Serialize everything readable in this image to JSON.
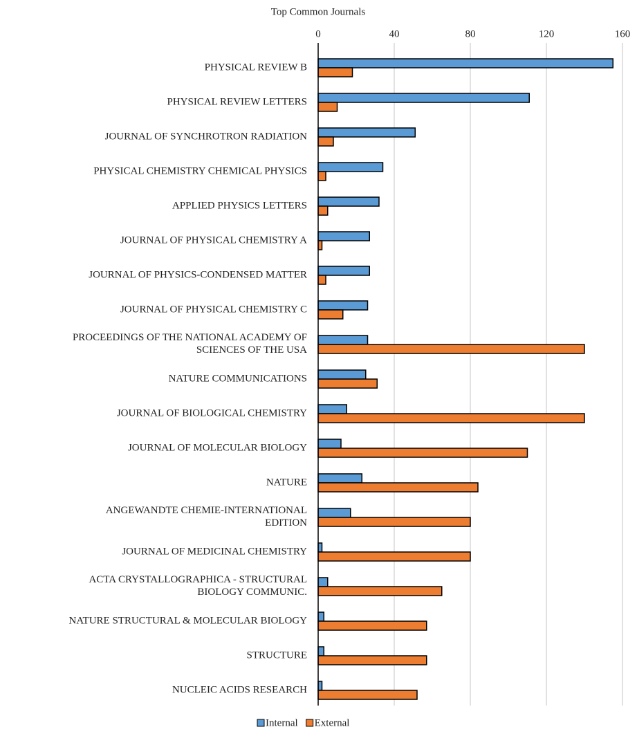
{
  "chart_data": {
    "type": "bar",
    "orientation": "horizontal",
    "title": "Top Common Journals",
    "categories": [
      "PHYSICAL REVIEW B",
      "PHYSICAL REVIEW LETTERS",
      "JOURNAL OF SYNCHROTRON RADIATION",
      "PHYSICAL CHEMISTRY CHEMICAL PHYSICS",
      "APPLIED PHYSICS LETTERS",
      "JOURNAL OF PHYSICAL CHEMISTRY A",
      "JOURNAL OF PHYSICS-CONDENSED MATTER",
      "JOURNAL OF PHYSICAL CHEMISTRY C",
      "PROCEEDINGS OF THE NATIONAL ACADEMY OF\nSCIENCES OF THE USA",
      "NATURE COMMUNICATIONS",
      "JOURNAL OF BIOLOGICAL CHEMISTRY",
      "JOURNAL OF MOLECULAR BIOLOGY",
      "NATURE",
      "ANGEWANDTE CHEMIE-INTERNATIONAL\nEDITION",
      "JOURNAL OF MEDICINAL CHEMISTRY",
      "ACTA CRYSTALLOGRAPHICA - STRUCTURAL\nBIOLOGY COMMUNIC.",
      "NATURE STRUCTURAL & MOLECULAR BIOLOGY",
      "STRUCTURE",
      "NUCLEIC ACIDS RESEARCH"
    ],
    "series": [
      {
        "name": "Internal",
        "color": "#5b9bd5",
        "values": [
          155,
          111,
          51,
          34,
          32,
          27,
          27,
          26,
          26,
          25,
          15,
          12,
          23,
          17,
          2,
          5,
          3,
          3,
          2
        ]
      },
      {
        "name": "External",
        "color": "#ed7d31",
        "values": [
          18,
          10,
          8,
          4,
          5,
          2,
          4,
          13,
          140,
          31,
          140,
          110,
          84,
          80,
          80,
          65,
          57,
          57,
          52
        ]
      }
    ],
    "xlim": [
      0,
      160
    ],
    "xticks": [
      0,
      40,
      80,
      120,
      160
    ],
    "grid": true,
    "legend": "bottom"
  }
}
